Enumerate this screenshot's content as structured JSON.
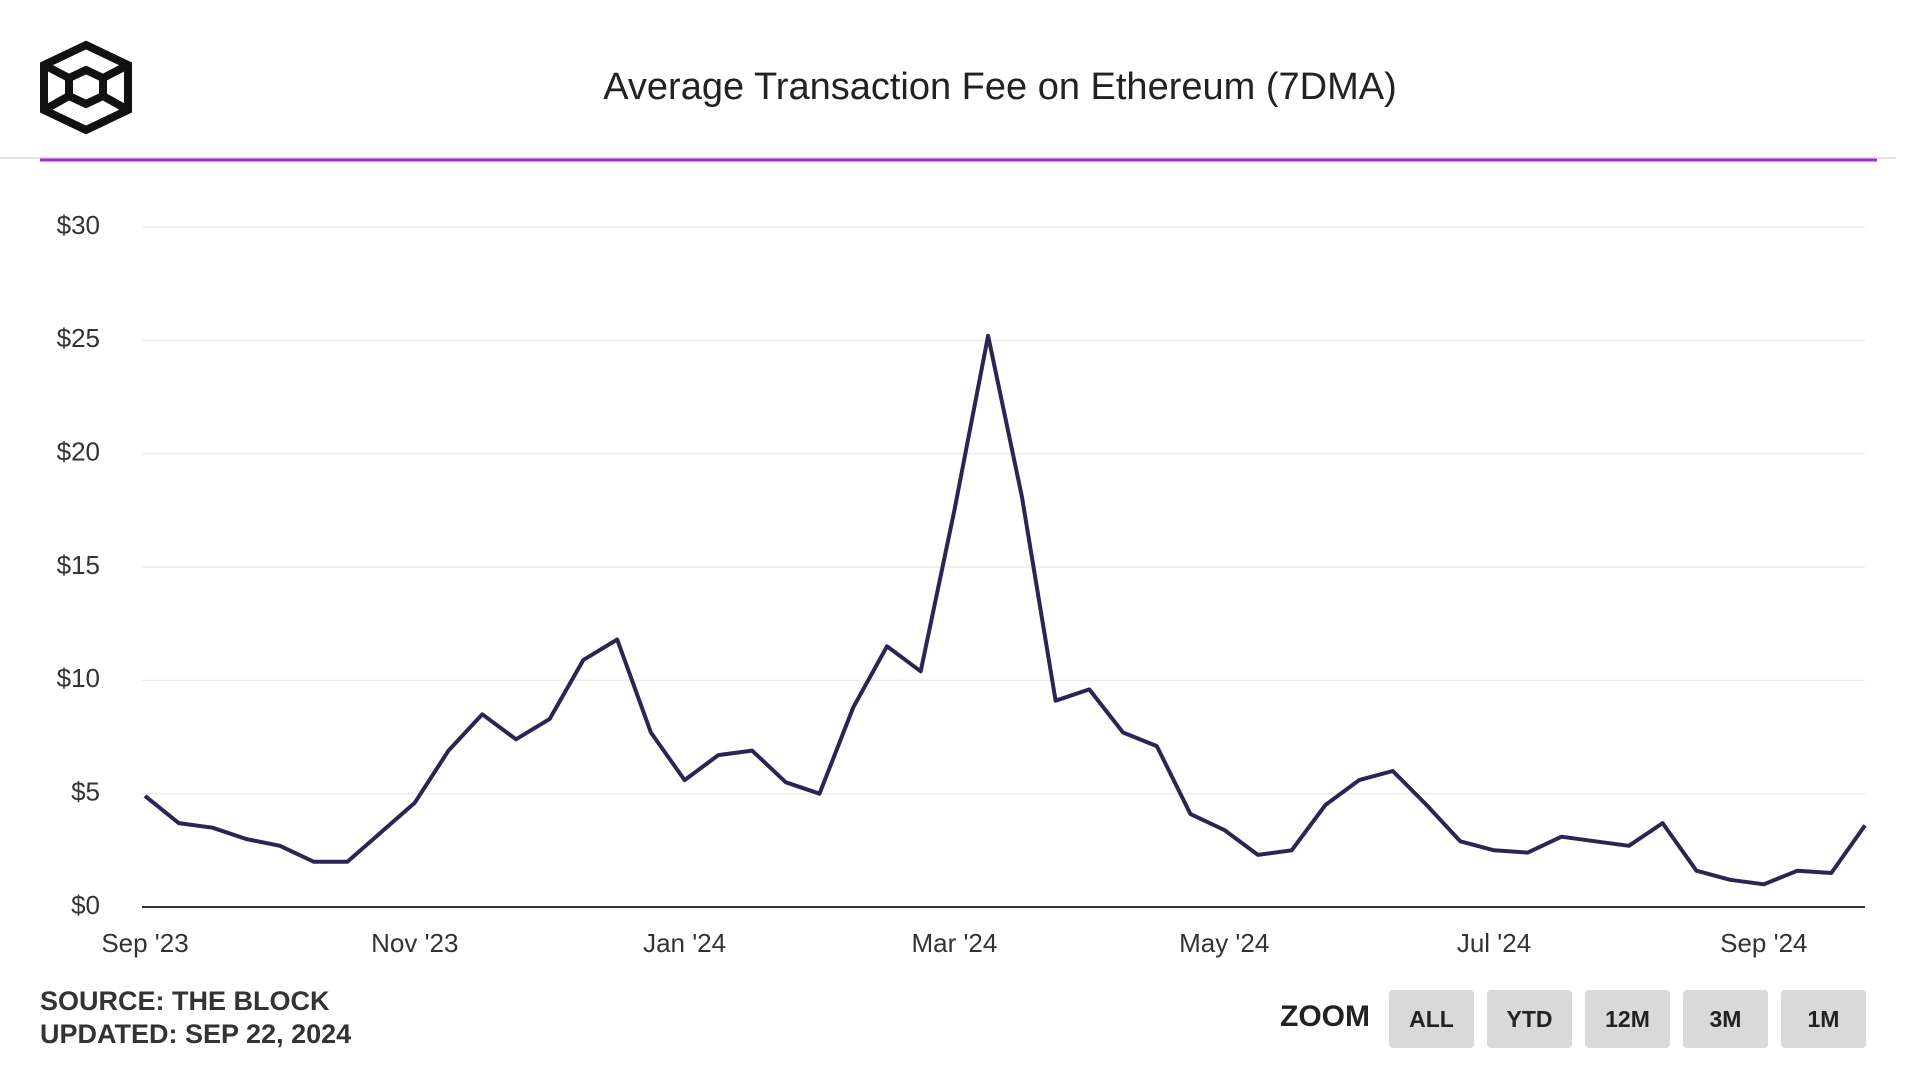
{
  "chart_data": {
    "type": "line",
    "title": "Average Transaction Fee on Ethereum (7DMA)",
    "categories": [
      "Sep '23",
      null,
      null,
      null,
      null,
      null,
      null,
      null,
      "Nov '23",
      null,
      null,
      null,
      null,
      null,
      null,
      null,
      "Jan '24",
      null,
      null,
      null,
      null,
      null,
      null,
      null,
      "Mar '24",
      null,
      null,
      null,
      null,
      null,
      null,
      null,
      "May '24",
      null,
      null,
      null,
      null,
      null,
      null,
      null,
      "Jul '24",
      null,
      null,
      null,
      null,
      null,
      null,
      null,
      "Sep '24",
      null,
      null,
      null
    ],
    "series": [
      {
        "name": "Average Transaction Fee",
        "color": "#2a2552",
        "values": [
          4.9,
          3.7,
          3.5,
          3.0,
          2.7,
          2.0,
          2.0,
          3.3,
          4.6,
          6.9,
          8.5,
          7.4,
          8.3,
          10.9,
          11.8,
          7.7,
          5.6,
          6.7,
          6.9,
          5.5,
          5.0,
          8.8,
          11.5,
          10.4,
          17.5,
          25.2,
          18.1,
          9.1,
          9.6,
          7.7,
          7.1,
          4.1,
          3.4,
          2.3,
          2.5,
          4.5,
          5.6,
          6.0,
          4.5,
          2.9,
          2.5,
          2.4,
          3.1,
          2.9,
          2.7,
          3.7,
          1.6,
          1.2,
          1.0,
          1.6,
          1.5,
          3.6
        ]
      }
    ],
    "ylim": [
      0,
      30
    ],
    "yticks": [
      {
        "value": 0,
        "label": "$0"
      },
      {
        "value": 5,
        "label": "$5"
      },
      {
        "value": 10,
        "label": "$10"
      },
      {
        "value": 15,
        "label": "$15"
      },
      {
        "value": 20,
        "label": "$20"
      },
      {
        "value": 25,
        "label": "$25"
      },
      {
        "value": 30,
        "label": "$30"
      }
    ],
    "grid": true
  },
  "footer": {
    "source": "SOURCE: THE BLOCK",
    "updated": "UPDATED: SEP 22, 2024"
  },
  "zoom": {
    "label": "ZOOM",
    "buttons": [
      "ALL",
      "YTD",
      "12M",
      "3M",
      "1M"
    ]
  }
}
